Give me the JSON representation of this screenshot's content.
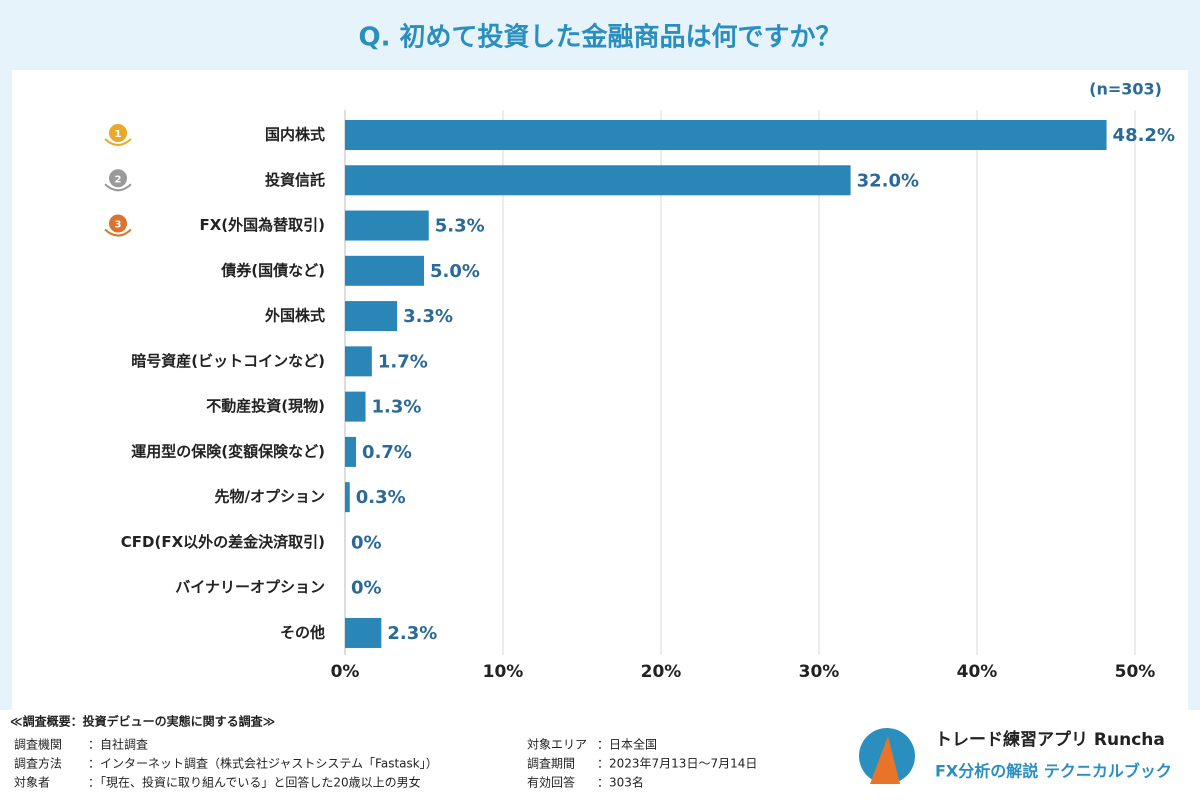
{
  "header": {
    "title": "Q. 初めて投資した金融商品は何ですか？"
  },
  "chart_data": {
    "type": "bar",
    "orientation": "horizontal",
    "note": "(n=303)",
    "categories": [
      "国内株式",
      "投資信託",
      "FX(外国為替取引)",
      "債券(国債など)",
      "外国株式",
      "暗号資産(ビットコインなど)",
      "不動産投資(現物)",
      "運用型の保険(変額保険など)",
      "先物/オプション",
      "CFD(FX以外の差金決済取引)",
      "バイナリーオプション",
      "その他"
    ],
    "values": [
      48.2,
      32.0,
      5.3,
      5.0,
      3.3,
      1.7,
      1.3,
      0.7,
      0.3,
      0,
      0,
      2.3
    ],
    "value_labels": [
      "48.2%",
      "32.0%",
      "5.3%",
      "5.0%",
      "3.3%",
      "1.7%",
      "1.3%",
      "0.7%",
      "0.3%",
      "0%",
      "0%",
      "2.3%"
    ],
    "color": "#2b86b8",
    "xlim": [
      0,
      50
    ],
    "xticks": [
      {
        "value": 0,
        "label": "0%"
      },
      {
        "value": 10,
        "label": "10%"
      },
      {
        "value": 20,
        "label": "20%"
      },
      {
        "value": 30,
        "label": "30%"
      },
      {
        "value": 40,
        "label": "40%"
      },
      {
        "value": 50,
        "label": "50%"
      }
    ],
    "grid": true,
    "badges": [
      "1",
      "2",
      "3"
    ],
    "badge_colors": [
      "#e8a82a",
      "#9a9a9a",
      "#d9742e"
    ]
  },
  "footer": {
    "heading": "≪調査概要：投資デビューの実態に関する調査≫",
    "left": [
      [
        "調査機関",
        "：自社調査"
      ],
      [
        "調査方法",
        "：インターネット調査（株式会社ジャストシステム「Fastask」）"
      ],
      [
        "対象者",
        "：「現在、投資に取り組んでいる」と回答した20歳以上の男女"
      ]
    ],
    "right": [
      [
        "対象エリア",
        "：日本全国"
      ],
      [
        "調査期間",
        "：2023年7月13日〜7月14日"
      ],
      [
        "有効回答",
        "：303名"
      ]
    ],
    "brand": {
      "name": "トレード練習アプリ Runcha",
      "tagline": "FX分析の解説 テクニカルブック"
    }
  }
}
